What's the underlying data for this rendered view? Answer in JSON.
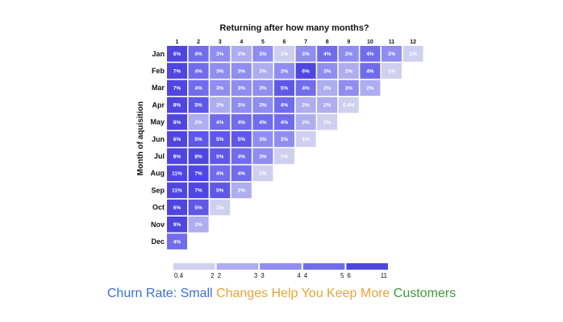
{
  "chart_data": {
    "type": "heatmap",
    "title": "Returning after how many months?",
    "ylabel": "Month of aquisition",
    "columns": [
      "1",
      "2",
      "3",
      "4",
      "5",
      "6",
      "7",
      "8",
      "9",
      "10",
      "11",
      "12"
    ],
    "rows": [
      "Jan",
      "Feb",
      "Mar",
      "Apr",
      "May",
      "Jun",
      "Jul",
      "Aug",
      "Sep",
      "Oct",
      "Nov",
      "Dec"
    ],
    "values": [
      [
        6,
        4,
        3,
        2,
        3,
        1,
        3,
        4,
        3,
        4,
        3,
        1
      ],
      [
        7,
        4,
        3,
        3,
        2,
        3,
        6,
        3,
        2,
        4,
        1
      ],
      [
        7,
        4,
        3,
        3,
        3,
        5,
        4,
        2,
        3,
        2
      ],
      [
        8,
        5,
        2,
        3,
        3,
        4,
        2,
        2,
        0.4
      ],
      [
        8,
        2,
        4,
        4,
        4,
        4,
        2,
        1
      ],
      [
        6,
        5,
        5,
        5,
        3,
        3,
        1
      ],
      [
        8,
        8,
        5,
        4,
        3,
        1
      ],
      [
        11,
        7,
        4,
        4,
        1
      ],
      [
        11,
        7,
        5,
        2
      ],
      [
        6,
        5,
        1
      ],
      [
        9,
        2
      ],
      [
        4
      ]
    ],
    "cell_labels": [
      [
        "6%",
        "4%",
        "3%",
        "2%",
        "3%",
        "1%",
        "3%",
        "4%",
        "3%",
        "4%",
        "3%",
        "1%"
      ],
      [
        "7%",
        "4%",
        "3%",
        "3%",
        "2%",
        "3%",
        "6%",
        "3%",
        "2%",
        "4%",
        "1%"
      ],
      [
        "7%",
        "4%",
        "3%",
        "3%",
        "3%",
        "5%",
        "4%",
        "2%",
        "3%",
        "2%"
      ],
      [
        "8%",
        "5%",
        "2%",
        "3%",
        "3%",
        "4%",
        "2%",
        "2%",
        "0.4%"
      ],
      [
        "8%",
        "2%",
        "4%",
        "4%",
        "4%",
        "4%",
        "2%",
        "1%"
      ],
      [
        "6%",
        "5%",
        "5%",
        "5%",
        "3%",
        "3%",
        "1%"
      ],
      [
        "8%",
        "8%",
        "5%",
        "4%",
        "3%",
        "1%"
      ],
      [
        "11%",
        "7%",
        "4%",
        "4%",
        "1%"
      ],
      [
        "11%",
        "7%",
        "5%",
        "2%"
      ],
      [
        "6%",
        "5%",
        "1%"
      ],
      [
        "9%",
        "2%"
      ],
      [
        "4%"
      ]
    ],
    "legend": {
      "bins": [
        {
          "lo": "0.4",
          "hi": "2",
          "color": "#cfd0f0"
        },
        {
          "lo": "2",
          "hi": "3",
          "color": "#aeadf0"
        },
        {
          "lo": "3",
          "hi": "4",
          "color": "#908df0"
        },
        {
          "lo": "4",
          "hi": "5",
          "color": "#716cec"
        },
        {
          "lo": "6",
          "hi": "11",
          "color": "#4f46e0"
        }
      ]
    }
  },
  "caption": {
    "parts": [
      {
        "text": "Churn Rate: Small ",
        "color": "#3b6fd6"
      },
      {
        "text": "Changes Help You Keep More ",
        "color": "#e8a33a"
      },
      {
        "text": "Customers",
        "color": "#3a9a3a"
      }
    ]
  }
}
